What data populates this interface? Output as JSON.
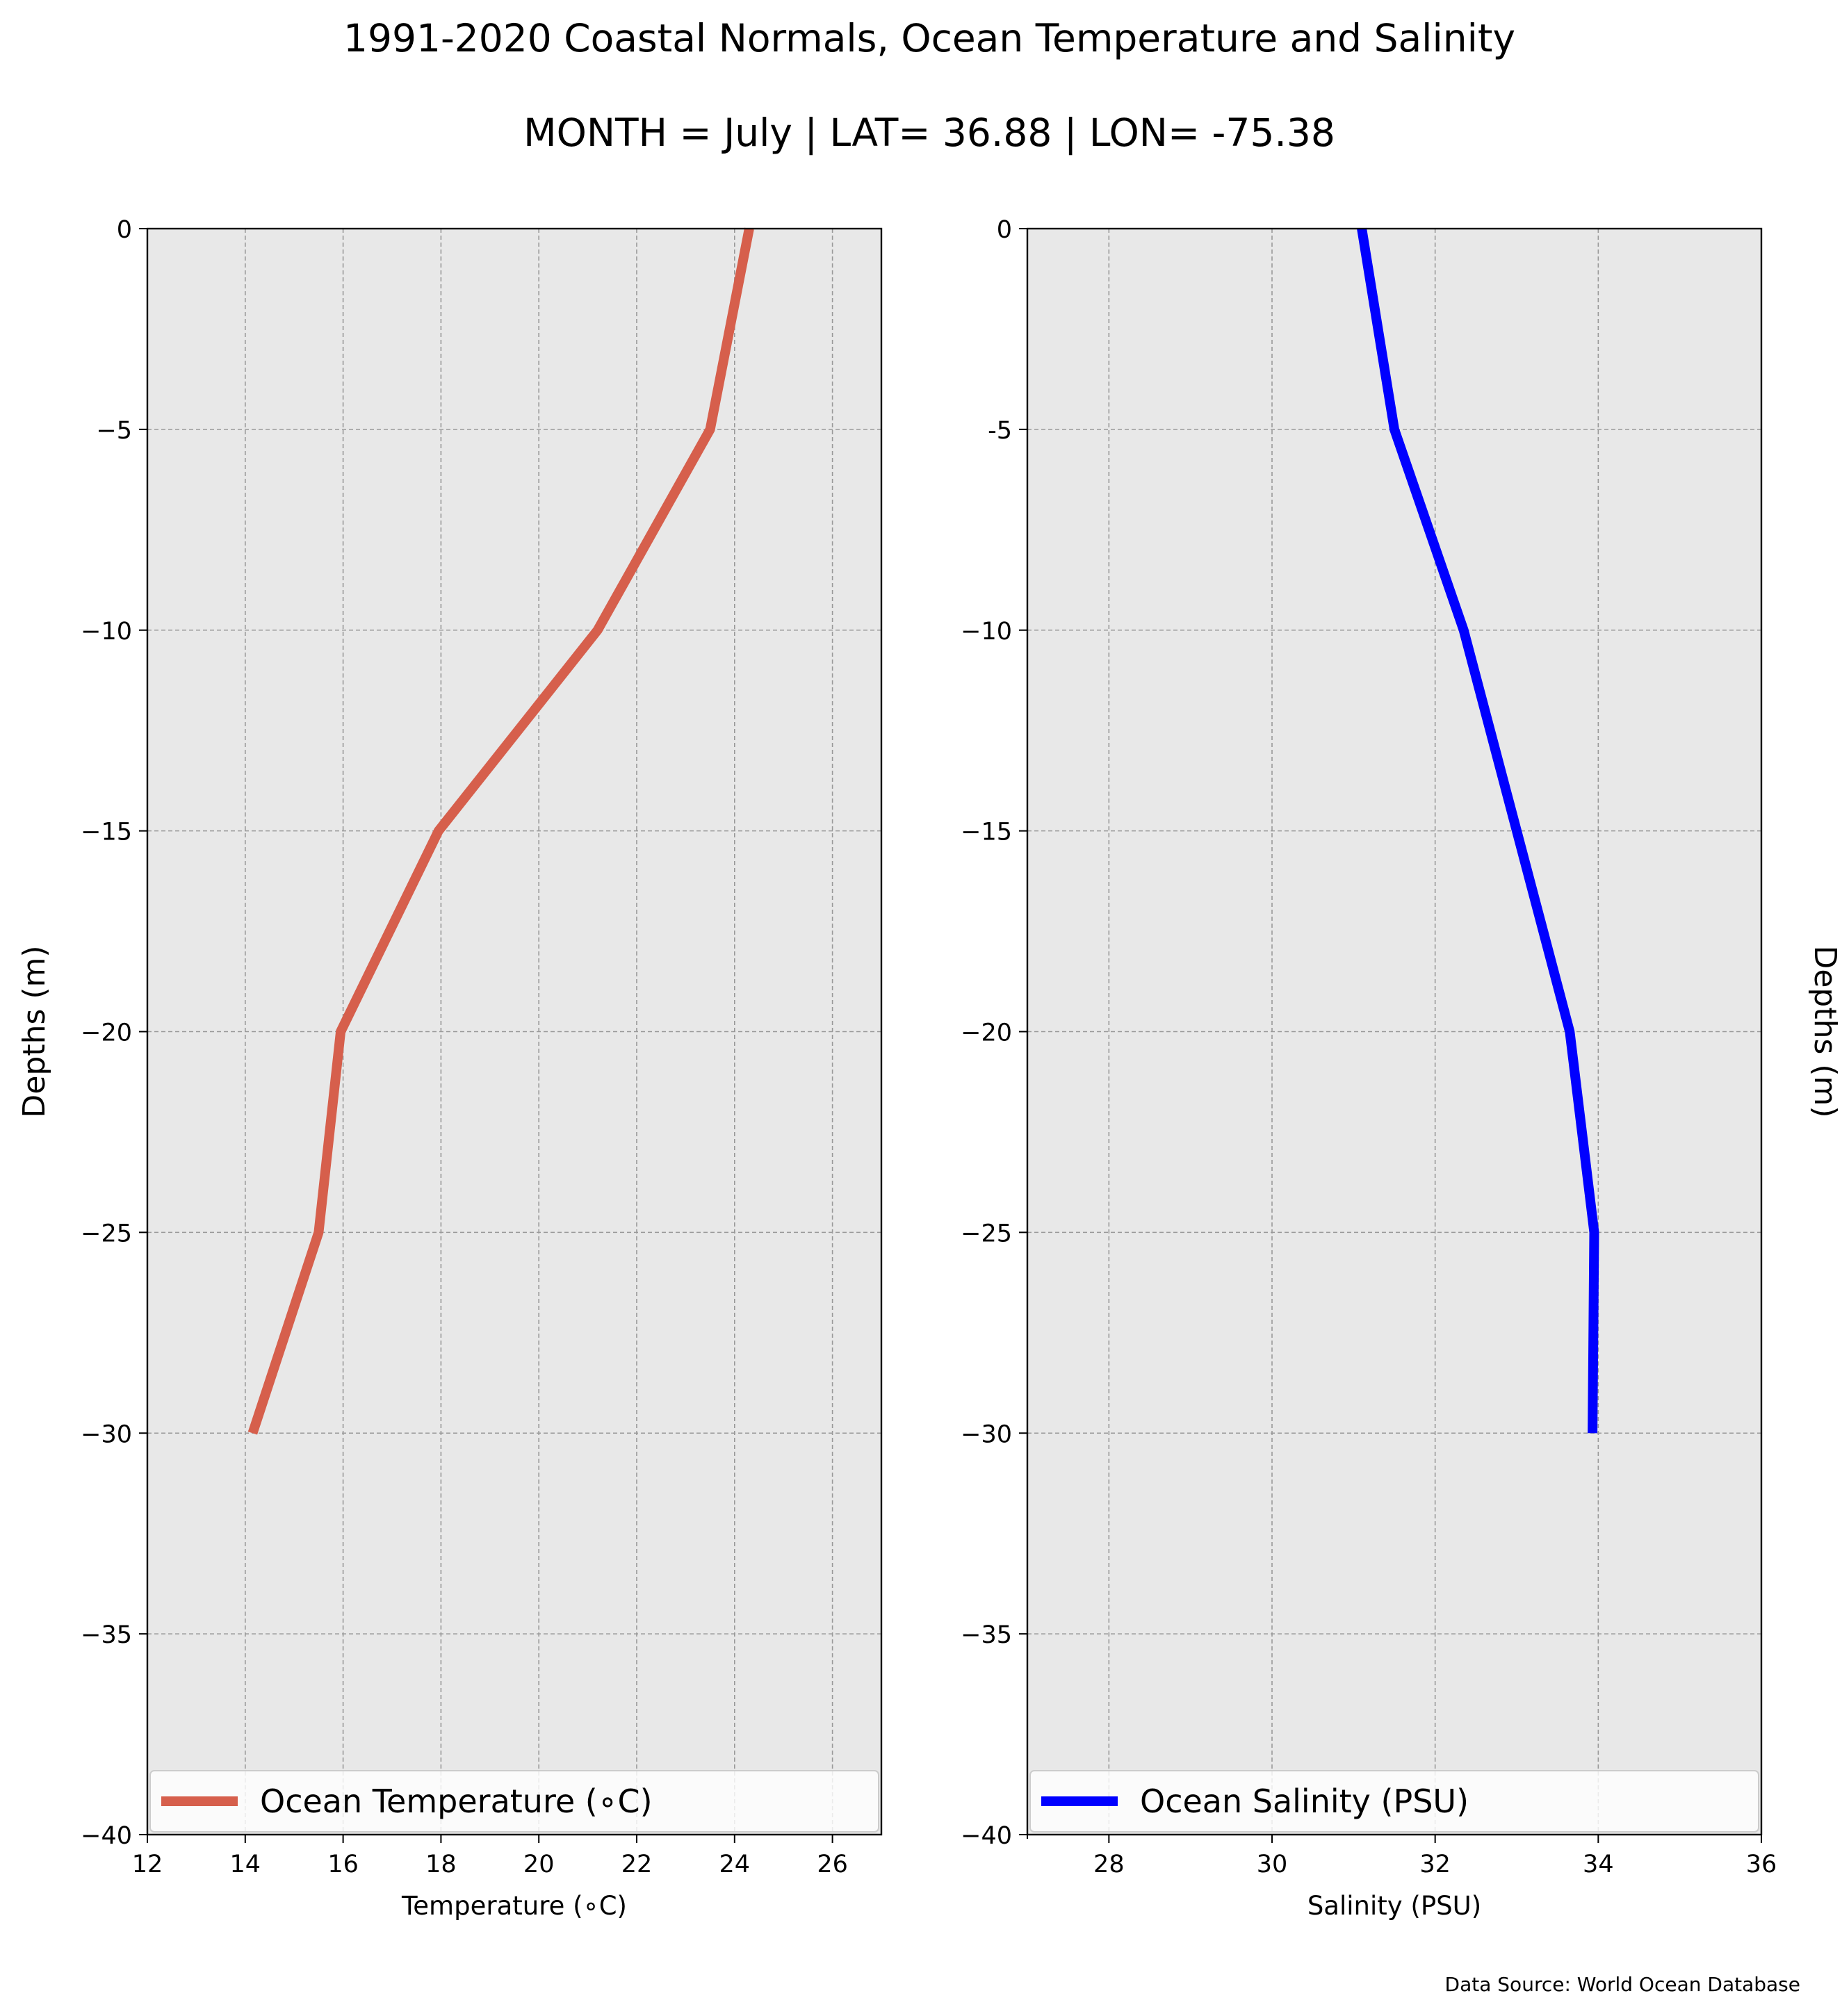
{
  "title": "1991-2020 Coastal Normals, Ocean Temperature and Salinity",
  "subtitle": "MONTH = July | LAT= 36.88 | LON= -75.38",
  "source_note": "Data Source: World Ocean Database",
  "chart_data": [
    {
      "type": "line",
      "xlabel": "Temperature ($^\\circ$C)",
      "xlabel_display": "Temperature (∘C)",
      "ylabel": "Depths (m)",
      "xlim": [
        12,
        27
      ],
      "ylim": [
        -40,
        0
      ],
      "xticks": [
        12,
        14,
        16,
        18,
        20,
        22,
        24,
        26
      ],
      "yticks": [
        0,
        -5,
        -10,
        -15,
        -20,
        -25,
        -30,
        -35,
        -40
      ],
      "ytick_labels": [
        "0",
        "−5",
        "−10",
        "−15",
        "−20",
        "−25",
        "−30",
        "−35",
        "−40"
      ],
      "grid": true,
      "legend_position": "bottom",
      "series": [
        {
          "name": "Ocean Temperature (∘C)",
          "color": "#d65f4c",
          "x": [
            24.3,
            23.5,
            21.2,
            17.95,
            15.95,
            15.5,
            14.15
          ],
          "y": [
            0,
            -5,
            -10,
            -15,
            -20,
            -25,
            -30
          ]
        }
      ]
    },
    {
      "type": "line",
      "xlabel": "Salinity (PSU)",
      "ylabel": "Depths (m)",
      "ylabel_position": "right",
      "xlim": [
        27,
        36
      ],
      "ylim": [
        -40,
        0
      ],
      "xticks": [
        28,
        30,
        32,
        34,
        36
      ],
      "yticks": [
        0,
        -5,
        -10,
        -15,
        -20,
        -25,
        -30,
        -35,
        -40
      ],
      "ytick_labels": [
        "0",
        "-5",
        "−10",
        "−15",
        "−20",
        "−25",
        "−30",
        "−35",
        "−40"
      ],
      "grid": true,
      "legend_position": "bottom",
      "series": [
        {
          "name": "Ocean Salinity (PSU)",
          "color": "#0000ff",
          "x": [
            31.1,
            31.5,
            32.35,
            33.0,
            33.65,
            33.95,
            33.93
          ],
          "y": [
            0,
            -5,
            -10,
            -15,
            -20,
            -25,
            -30
          ]
        }
      ]
    }
  ]
}
